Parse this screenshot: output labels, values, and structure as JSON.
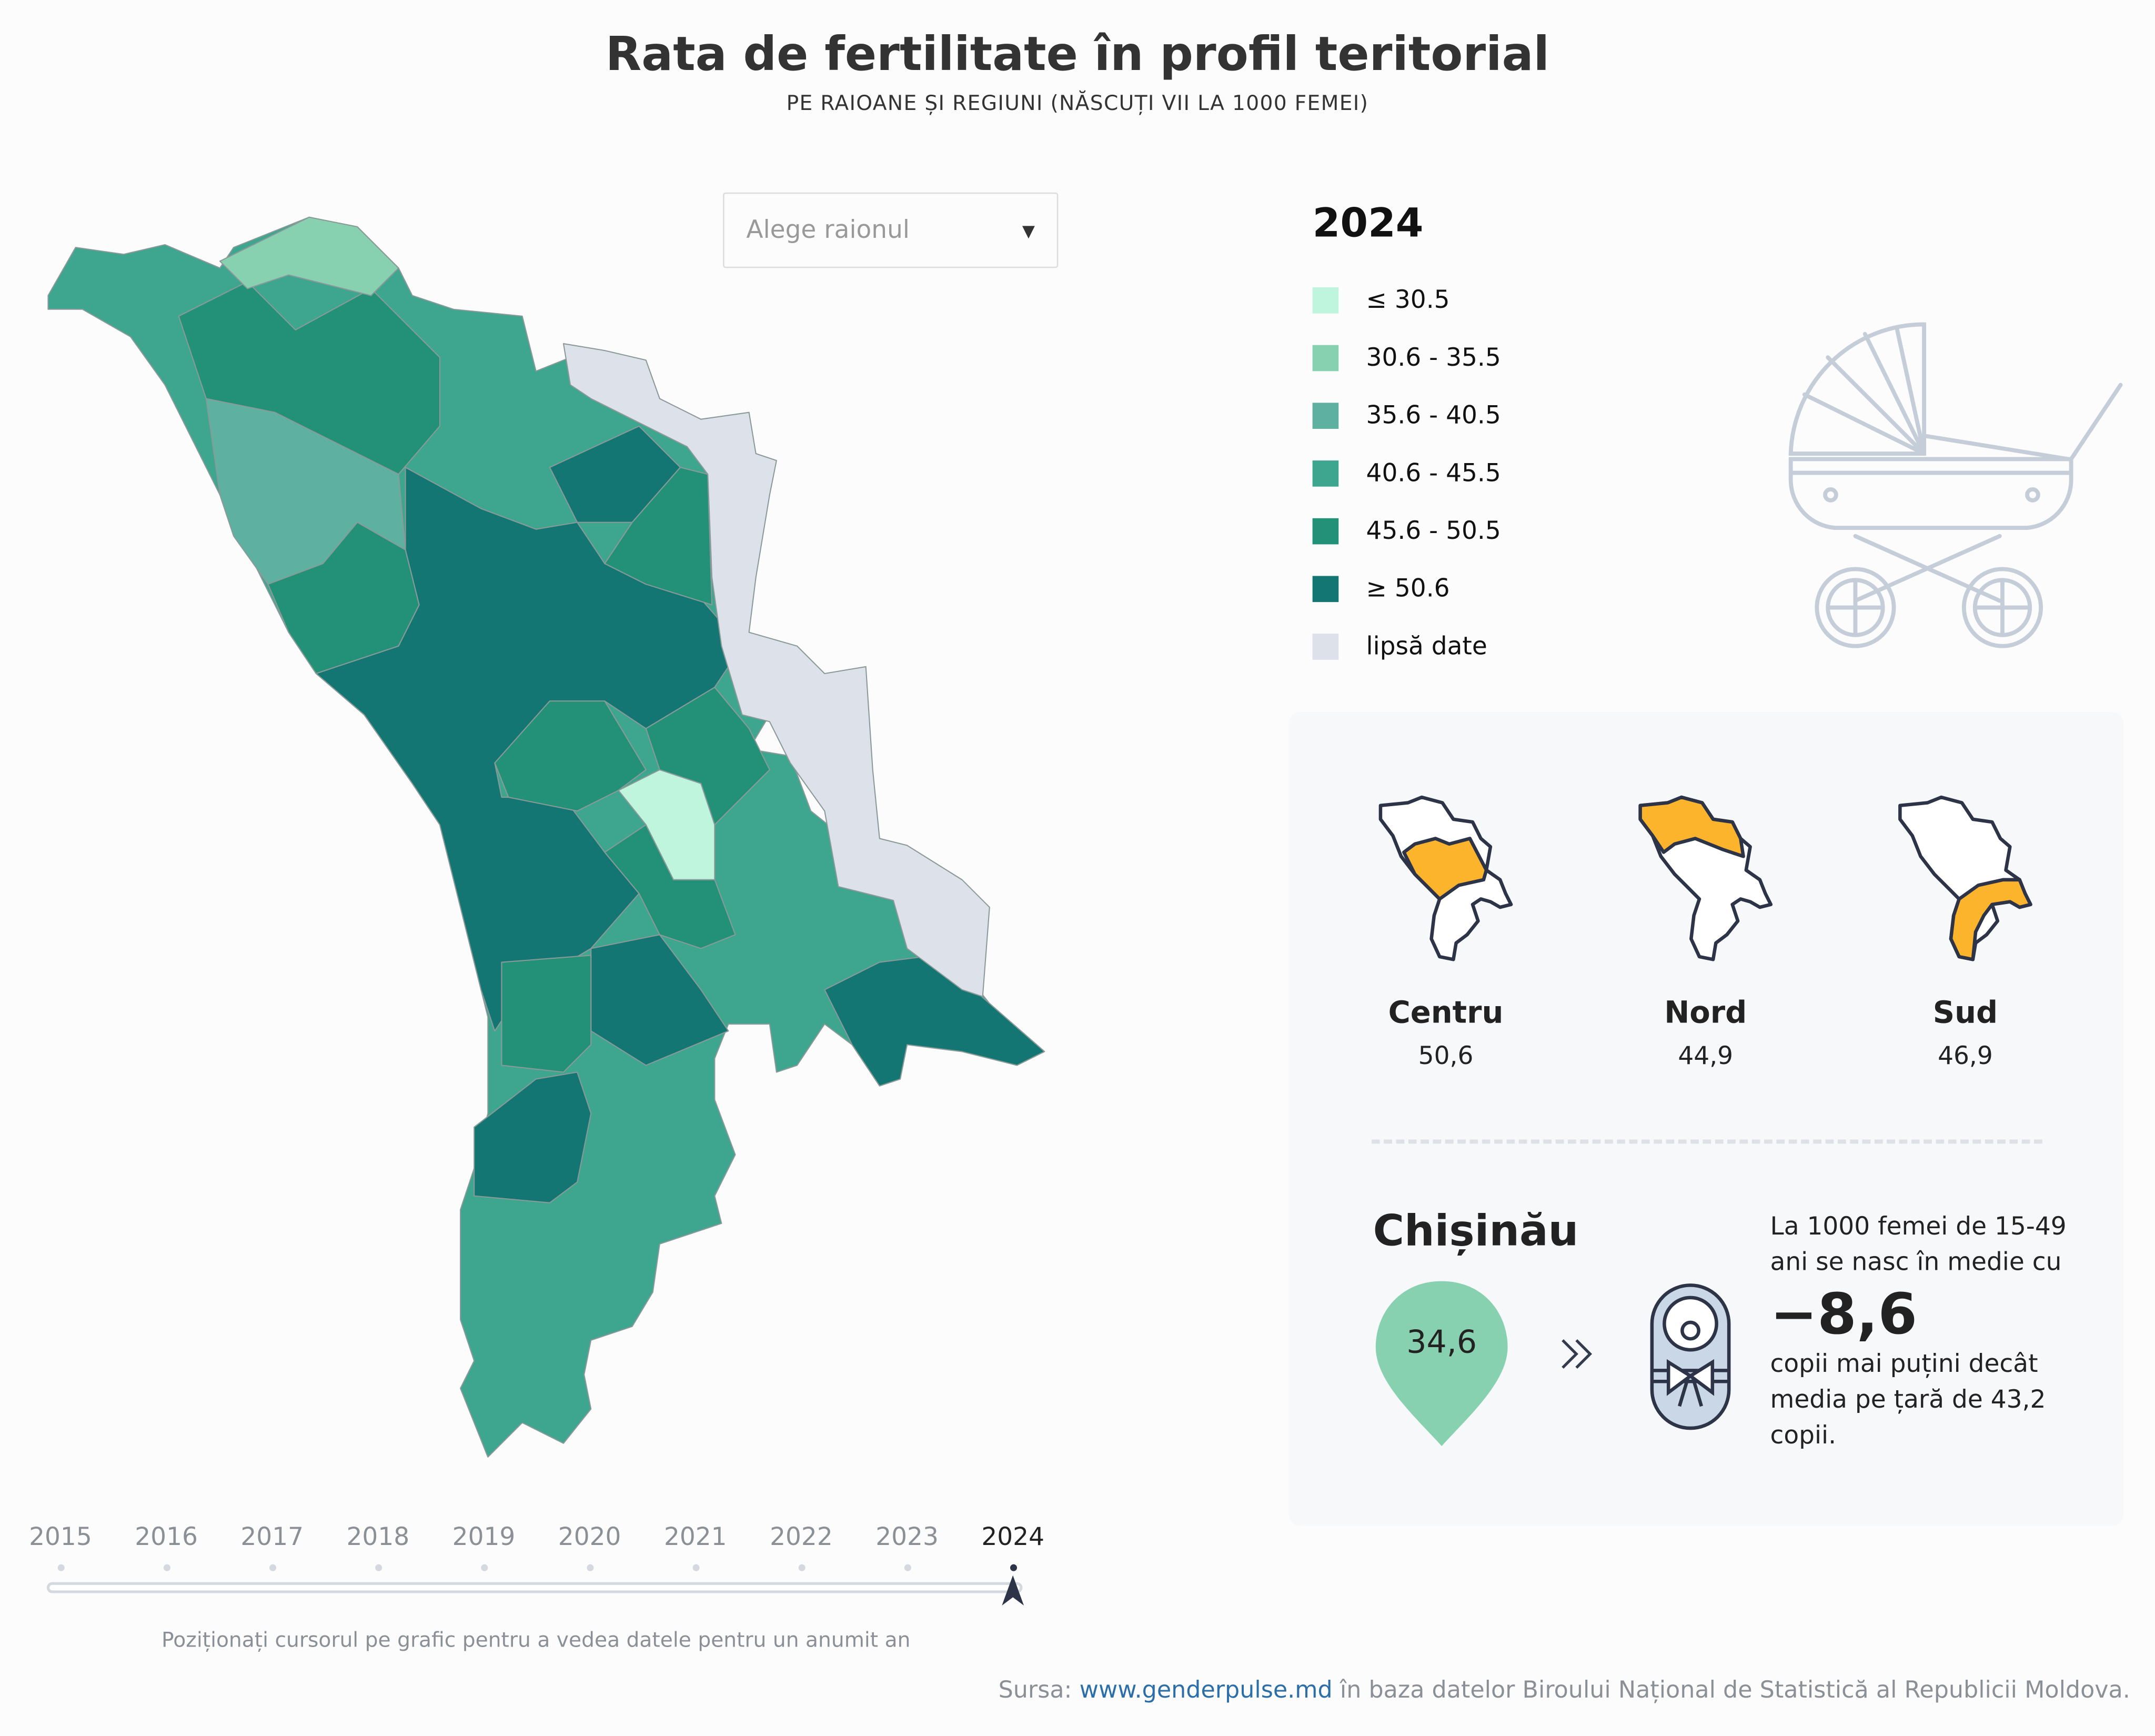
{
  "header": {
    "title": "Rata de fertilitate în profil teritorial",
    "subtitle": "PE RAIOANE ȘI REGIUNI (NĂSCUȚI VII LA 1000 FEMEI)"
  },
  "dropdown": {
    "placeholder": "Alege raionul"
  },
  "legend": {
    "year": "2024",
    "items": [
      {
        "label": "≤ 30.5",
        "color": "#bff5dc"
      },
      {
        "label": "30.6 - 35.5",
        "color": "#88d1b0"
      },
      {
        "label": "35.6 - 40.5",
        "color": "#5eb1a1"
      },
      {
        "label": "40.6 - 45.5",
        "color": "#3ea58f"
      },
      {
        "label": "45.6 - 50.5",
        "color": "#229178"
      },
      {
        "label": "≥ 50.6",
        "color": "#137672"
      },
      {
        "label": "lipsă date",
        "color": "#dde1ea"
      }
    ]
  },
  "regions": [
    {
      "name": "Centru",
      "value": "50,6"
    },
    {
      "name": "Nord",
      "value": "44,9"
    },
    {
      "name": "Sud",
      "value": "46,9"
    }
  ],
  "highlight_color": "#fdb42d",
  "city": {
    "name": "Chișinău",
    "value": "34,6",
    "pin_color": "#88d1b0",
    "text_before": "La 1000 femei de 15-49 ani se nasc în medie cu",
    "difference": "−8,6",
    "text_after": "copii mai puțini decât media pe țară de 43,2 copii."
  },
  "timeline": {
    "years": [
      "2015",
      "2016",
      "2017",
      "2018",
      "2019",
      "2020",
      "2021",
      "2022",
      "2023",
      "2024"
    ],
    "selected": "2024",
    "hint": "Poziționați cursorul pe grafic pentru a vedea datele pentru un anumit an"
  },
  "source": {
    "prefix": "Sursa: ",
    "link": "www.genderpulse.md",
    "suffix": " în baza datelor Biroului Național de Statistică al Republicii Moldova."
  }
}
